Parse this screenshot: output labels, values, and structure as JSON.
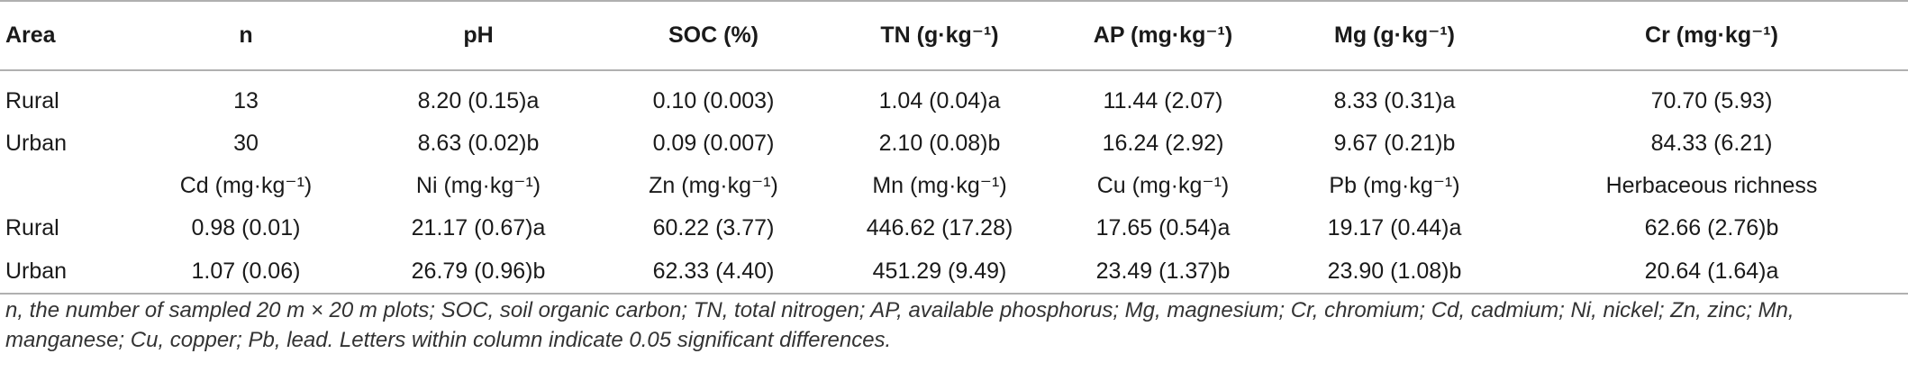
{
  "table": {
    "header": [
      "Area",
      "n",
      "pH",
      "SOC (%)",
      "TN (g·kg⁻¹)",
      "AP (mg·kg⁻¹)",
      "Mg (g·kg⁻¹)",
      "Cr (mg·kg⁻¹)"
    ],
    "rows": [
      [
        "Rural",
        "13",
        "8.20 (0.15)a",
        "0.10 (0.003)",
        "1.04 (0.04)a",
        "11.44 (2.07)",
        "8.33 (0.31)a",
        "70.70 (5.93)"
      ],
      [
        "Urban",
        "30",
        "8.63 (0.02)b",
        "0.09 (0.007)",
        "2.10 (0.08)b",
        "16.24 (2.92)",
        "9.67 (0.21)b",
        "84.33 (6.21)"
      ],
      [
        "",
        "Cd  (mg·kg⁻¹)",
        "Ni  (mg·kg⁻¹)",
        "Zn  (mg·kg⁻¹)",
        "Mn  (mg·kg⁻¹)",
        "Cu  (mg·kg⁻¹)",
        "Pb  (mg·kg⁻¹)",
        "Herbaceous richness"
      ],
      [
        "Rural",
        "0.98 (0.01)",
        "21.17 (0.67)a",
        "60.22 (3.77)",
        "446.62 (17.28)",
        "17.65 (0.54)a",
        "19.17 (0.44)a",
        "62.66 (2.76)b"
      ],
      [
        "Urban",
        "1.07 (0.06)",
        "26.79 (0.96)b",
        "62.33 (4.40)",
        "451.29 (9.49)",
        "23.49 (1.37)b",
        "23.90 (1.08)b",
        "20.64 (1.64)a"
      ]
    ]
  },
  "footnote": "n, the number of sampled 20 m × 20 m plots; SOC, soil organic carbon; TN, total nitrogen; AP, available phosphorus; Mg, magnesium; Cr, chromium; Cd, cadmium; Ni, nickel; Zn, zinc; Mn, manganese; Cu, copper; Pb, lead. Letters within column indicate 0.05 significant differences.",
  "colors": {
    "rule": "#b0b0b0",
    "text": "#1a1a1a"
  }
}
